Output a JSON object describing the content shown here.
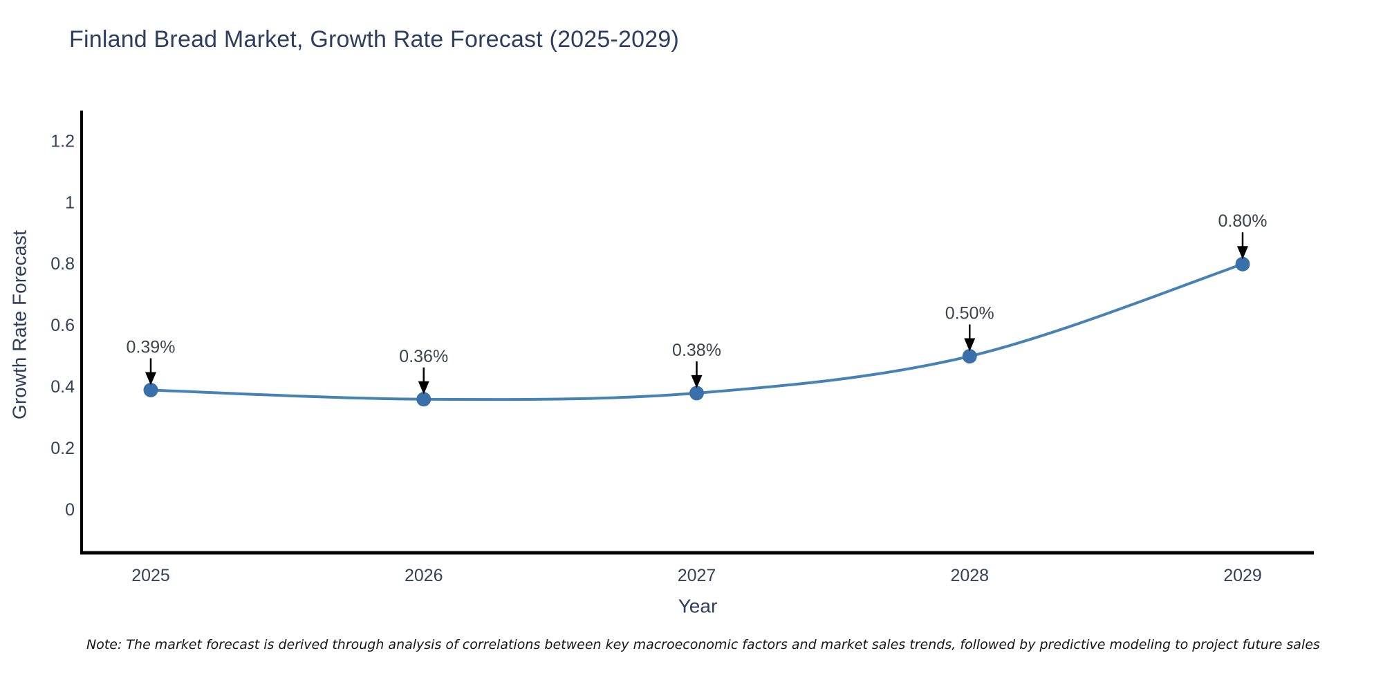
{
  "title": "Finland Bread Market, Growth Rate Forecast (2025-2029)",
  "note": "Note: The market forecast is derived through analysis of correlations between key macroeconomic factors and market sales trends, followed by predictive modeling to project future sales",
  "chart_data": {
    "type": "line",
    "title": "Finland Bread Market, Growth Rate Forecast (2025-2029)",
    "xlabel": "Year",
    "ylabel": "Growth Rate Forecast",
    "categories": [
      "2025",
      "2026",
      "2027",
      "2028",
      "2029"
    ],
    "values": [
      0.39,
      0.36,
      0.38,
      0.5,
      0.8
    ],
    "point_labels": [
      "0.39%",
      "0.36%",
      "0.38%",
      "0.50%",
      "0.80%"
    ],
    "y_ticks": [
      0,
      0.2,
      0.4,
      0.6,
      0.8,
      1,
      1.2
    ],
    "y_tick_labels": [
      "0",
      "0.2",
      "0.4",
      "0.6",
      "0.8",
      "1",
      "1.2"
    ],
    "ylim": [
      -0.14,
      1.3
    ],
    "grid": false,
    "legend": "none",
    "line_smoothing": "spline",
    "annotations_style": "value label above point with downward black arrow",
    "colors": {
      "line": "#4682b4",
      "marker": "#3a70a9",
      "axis": "#000000",
      "tick_label": "#33415c",
      "axis_title": "#2c3e5d",
      "chart_title": "#2c3e5d",
      "annotation_text": "#3d424d",
      "annotation_arrow": "#000000",
      "note_text": "#151515",
      "background": "#ffffff"
    }
  }
}
